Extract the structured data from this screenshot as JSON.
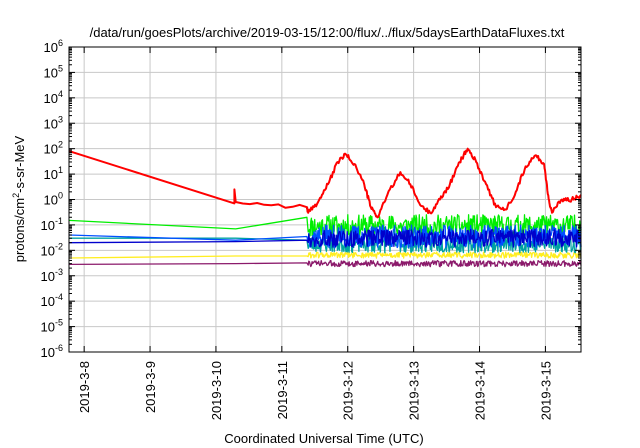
{
  "chart_data": {
    "type": "line",
    "title": "/data/run/goesPlots/archive/2019-03-15/12:00/flux/../flux/5daysEarthDataFluxes.txt",
    "xlabel": "Coordinated Universal Time (UTC)",
    "ylabel": "protons/cm2-s-sr-MeV",
    "ylabel_parts": {
      "pre": "protons/cm",
      "sup": "2",
      "post": "-s-sr-MeV"
    },
    "yscale": "log",
    "ylim_exp": [
      -6,
      6
    ],
    "y_ticks": [
      {
        "base": "10",
        "exp": "-6"
      },
      {
        "base": "10",
        "exp": "-5"
      },
      {
        "base": "10",
        "exp": "-4"
      },
      {
        "base": "10",
        "exp": "-3"
      },
      {
        "base": "10",
        "exp": "-2"
      },
      {
        "base": "10",
        "exp": "-1"
      },
      {
        "base": "10",
        "exp": "0"
      },
      {
        "base": "10",
        "exp": "1"
      },
      {
        "base": "10",
        "exp": "2"
      },
      {
        "base": "10",
        "exp": "3"
      },
      {
        "base": "10",
        "exp": "4"
      },
      {
        "base": "10",
        "exp": "5"
      },
      {
        "base": "10",
        "exp": "6"
      }
    ],
    "xlim_days": [
      7.77,
      15.54
    ],
    "x_tick_labels": [
      "2019-3-8",
      "2019-3-9",
      "2019-3-10",
      "2019-3-11",
      "2019-3-12",
      "2019-3-13",
      "2019-3-14",
      "2019-3-15"
    ],
    "x_tick_days": [
      8,
      9,
      10,
      11,
      12,
      13,
      14,
      15
    ],
    "grid": true,
    "legend": "none",
    "series": [
      {
        "color": "#ff0000",
        "style": "smooth",
        "points": [
          [
            7.77,
            80
          ],
          [
            10.28,
            0.7
          ],
          [
            10.28,
            2.5
          ],
          [
            10.3,
            0.8
          ],
          [
            11.38,
            0.5
          ],
          [
            11.4,
            0.3
          ],
          [
            11.55,
            0.8
          ],
          [
            11.7,
            4
          ],
          [
            11.85,
            30
          ],
          [
            11.97,
            60
          ],
          [
            12.1,
            25
          ],
          [
            12.25,
            4
          ],
          [
            12.35,
            0.5
          ],
          [
            12.45,
            0.2
          ],
          [
            12.6,
            1.5
          ],
          [
            12.8,
            12
          ],
          [
            12.95,
            4
          ],
          [
            13.1,
            0.6
          ],
          [
            13.25,
            0.3
          ],
          [
            13.4,
            1
          ],
          [
            13.55,
            4
          ],
          [
            13.7,
            30
          ],
          [
            13.82,
            100
          ],
          [
            13.95,
            30
          ],
          [
            14.1,
            4
          ],
          [
            14.25,
            0.5
          ],
          [
            14.4,
            0.4
          ],
          [
            14.55,
            2
          ],
          [
            14.7,
            20
          ],
          [
            14.85,
            55
          ],
          [
            14.98,
            25
          ],
          [
            15.05,
            1
          ],
          [
            15.1,
            0.3
          ],
          [
            15.25,
            1
          ],
          [
            15.4,
            1
          ],
          [
            15.54,
            1.5
          ]
        ]
      },
      {
        "color": "#00ee00",
        "style": "noisy",
        "sparse": [
          [
            7.77,
            0.15
          ],
          [
            10.3,
            0.07
          ],
          [
            11.38,
            0.2
          ]
        ],
        "noisy_from": 11.4,
        "noisy_to": 15.54,
        "center": 0.09,
        "spread": 0.45,
        "seed": 11
      },
      {
        "color": "#00a2a2",
        "style": "noisy",
        "sparse": [
          [
            7.77,
            0.03
          ],
          [
            10.3,
            0.03
          ],
          [
            11.38,
            0.025
          ]
        ],
        "noisy_from": 11.4,
        "noisy_to": 15.54,
        "center": 0.018,
        "spread": 0.35,
        "seed": 23
      },
      {
        "color": "#0050ff",
        "style": "noisy",
        "sparse": [
          [
            7.77,
            0.04
          ],
          [
            10.3,
            0.025
          ],
          [
            11.38,
            0.035
          ]
        ],
        "noisy_from": 11.4,
        "noisy_to": 15.54,
        "center": 0.035,
        "spread": 0.45,
        "seed": 37
      },
      {
        "color": "#0000cc",
        "style": "noisy",
        "sparse": [
          [
            7.77,
            0.02
          ],
          [
            10.3,
            0.022
          ],
          [
            11.38,
            0.025
          ]
        ],
        "noisy_from": 11.4,
        "noisy_to": 15.54,
        "center": 0.03,
        "spread": 0.35,
        "seed": 49
      },
      {
        "color": "#ffee22",
        "style": "noisy",
        "sparse": [
          [
            7.77,
            0.005
          ],
          [
            10.3,
            0.006
          ],
          [
            11.38,
            0.006
          ]
        ],
        "noisy_from": 11.4,
        "noisy_to": 15.54,
        "center": 0.0065,
        "spread": 0.12,
        "seed": 61
      },
      {
        "color": "#8b1a6b",
        "style": "noisy",
        "sparse": [
          [
            7.77,
            0.0028
          ],
          [
            10.3,
            0.003
          ],
          [
            11.38,
            0.0032
          ]
        ],
        "noisy_from": 11.4,
        "noisy_to": 15.54,
        "center": 0.003,
        "spread": 0.12,
        "seed": 73
      }
    ]
  }
}
